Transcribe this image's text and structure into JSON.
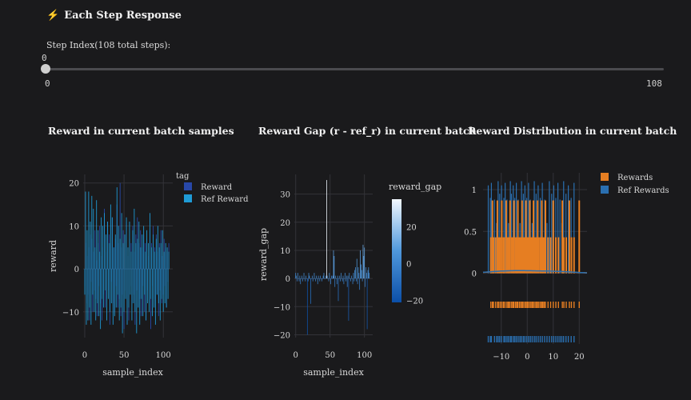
{
  "header": {
    "title": "Each Step Response",
    "icon": "lightning-icon"
  },
  "slider": {
    "label": "Step Index(108 total steps):",
    "value": "0",
    "min": "0",
    "max": "108",
    "current": 0,
    "total": 108
  },
  "charts": [
    {
      "title": "Reward in current batch samples",
      "chart_data": {
        "type": "bar",
        "title": "Reward in current batch samples",
        "xlabel": "sample_index",
        "ylabel": "reward",
        "xlim": [
          -2,
          112
        ],
        "ylim": [
          -16,
          22
        ],
        "x_ticks": [
          "0",
          "50",
          "100"
        ],
        "y_ticks": [
          "−10",
          "0",
          "10",
          "20"
        ],
        "legend": {
          "title": "tag",
          "entries": [
            "Reward",
            "Ref Reward"
          ],
          "colors": [
            "#2848a8",
            "#1f9bd6"
          ]
        },
        "series": [
          {
            "name": "Reward",
            "values": [
              -4,
              6,
              -8,
              3,
              -6,
              5,
              -12,
              8,
              -3,
              7,
              -10,
              4,
              -5,
              9,
              -7,
              2,
              -11,
              6,
              -4,
              10,
              -8,
              3,
              -12,
              5,
              -6,
              14,
              -9,
              4,
              -7,
              11,
              -5,
              8,
              -13,
              6,
              -3,
              12,
              -8,
              5,
              -10,
              7,
              -4,
              15,
              -9,
              6,
              -7,
              20,
              -11,
              5,
              -6,
              9,
              -14,
              8,
              -5,
              11,
              -9,
              3,
              -12,
              7,
              -4,
              6,
              -8,
              10,
              -6,
              4,
              -13,
              8,
              -5,
              12,
              -9,
              6,
              -7,
              9,
              -11,
              5,
              -4,
              8,
              -10,
              6,
              -12,
              7,
              -5,
              3,
              -8,
              9,
              -14,
              6,
              -4,
              10,
              -7,
              5,
              -9,
              8,
              -6,
              4,
              -11,
              6,
              -5,
              9,
              -8,
              3,
              -6,
              7,
              -4,
              5,
              -9,
              4,
              -3,
              6
            ]
          },
          {
            "name": "Ref Reward",
            "values": [
              -6,
              18,
              -13,
              9,
              -12,
              18,
              -9,
              11,
              -13,
              17,
              -6,
              14,
              -10,
              5,
              -12,
              16,
              -8,
              9,
              -11,
              4,
              -14,
              12,
              -7,
              10,
              -9,
              13,
              -5,
              8,
              -12,
              11,
              -7,
              6,
              -10,
              15,
              -8,
              12,
              -13,
              5,
              -11,
              8,
              -9,
              19,
              -6,
              10,
              -12,
              7,
              -9,
              13,
              -15,
              6,
              -10,
              8,
              -7,
              12,
              -13,
              5,
              -9,
              11,
              -6,
              4,
              -12,
              9,
              -8,
              14,
              -10,
              6,
              -15,
              7,
              -9,
              11,
              -13,
              5,
              -7,
              8,
              -11,
              10,
              -6,
              4,
              -12,
              9,
              -8,
              6,
              -10,
              13,
              -7,
              5,
              -11,
              8,
              -9,
              4,
              -13,
              7,
              -6,
              10,
              -8,
              5,
              -12,
              6,
              -7,
              9,
              -10,
              4,
              -8,
              6,
              -9,
              5,
              -7,
              4
            ]
          }
        ]
      }
    },
    {
      "title": "Reward Gap (r - ref_r) in current batch",
      "chart_data": {
        "type": "bar",
        "title": "Reward Gap (r - ref_r) in current batch",
        "xlabel": "sample_index",
        "ylabel": "reward_gap",
        "xlim": [
          -2,
          112
        ],
        "ylim": [
          -21,
          37
        ],
        "x_ticks": [
          "0",
          "50",
          "100"
        ],
        "y_ticks": [
          "−20",
          "−10",
          "0",
          "10",
          "20",
          "30"
        ],
        "colorbar": {
          "title": "reward_gap",
          "ticks": [
            "20",
            "0",
            "−20"
          ],
          "range": [
            -21,
            35
          ]
        },
        "values": [
          2,
          1,
          -1,
          2,
          0,
          -1,
          1,
          -2,
          0,
          1,
          -1,
          0,
          2,
          0,
          -1,
          1,
          0,
          -20,
          -1,
          2,
          1,
          0,
          -9,
          0,
          1,
          -1,
          0,
          2,
          0,
          -1,
          1,
          0,
          -2,
          1,
          0,
          -1,
          1,
          0,
          -1,
          0,
          1,
          2,
          0,
          0,
          1,
          35,
          1,
          0,
          -1,
          2,
          0,
          -2,
          1,
          0,
          1,
          10,
          8,
          -3,
          1,
          0,
          -2,
          1,
          -8,
          0,
          1,
          -1,
          2,
          0,
          -1,
          1,
          -2,
          0,
          2,
          -1,
          1,
          -3,
          1,
          -15,
          2,
          0,
          -1,
          1,
          0,
          -2,
          2,
          -1,
          3,
          4,
          -1,
          7,
          -2,
          4,
          2,
          -4,
          10,
          5,
          3,
          -1,
          12,
          8,
          11,
          -3,
          4,
          2,
          -18,
          3,
          4,
          2
        ]
      }
    },
    {
      "title": "Reward Distribution in current batch",
      "chart_data": {
        "type": "histogram",
        "title": "Reward Distribution in current batch",
        "xlim": [
          -17,
          23
        ],
        "ylim": [
          -0.08,
          1.2
        ],
        "x_ticks": [
          "−10",
          "0",
          "10",
          "20"
        ],
        "y_ticks": [
          "0",
          "0.5",
          "1"
        ],
        "legend": {
          "entries": [
            "Rewards",
            "Ref Rewards"
          ],
          "colors": [
            "#e67e22",
            "#2a6fb0"
          ]
        },
        "series": [
          {
            "name": "Rewards",
            "values": [
              -14,
              -13.4,
              -13,
              -12.2,
              -11.5,
              -11,
              -10.4,
              -9.8,
              -9.2,
              -8.8,
              -8.1,
              -7.5,
              -7.1,
              -6.6,
              -6,
              -5.5,
              -5.1,
              -4.5,
              -4,
              -3.6,
              -3,
              -2.5,
              -2,
              -1.6,
              -1,
              -0.5,
              0,
              0.4,
              1,
              1.5,
              2,
              2.4,
              3,
              3.5,
              4,
              4.5,
              5.1,
              5.6,
              6,
              6.5,
              7,
              8,
              9,
              10,
              11,
              12,
              13.5,
              14.1,
              15,
              16.2,
              17,
              18,
              20
            ]
          },
          {
            "name": "Ref Rewards",
            "values": [
              -15,
              -14.2,
              -13.8,
              -12.6,
              -11.8,
              -11.2,
              -10.6,
              -9.9,
              -9,
              -8.5,
              -7.8,
              -7.2,
              -6.5,
              -6.1,
              -5.4,
              -4.8,
              -4.2,
              -3.5,
              -2.8,
              -2.2,
              -1.5,
              -0.9,
              -0.2,
              0.5,
              1.2,
              1.9,
              2.7,
              3.4,
              4.2,
              5,
              5.8,
              6.7,
              7.6,
              8.5,
              9.4,
              10.2,
              11,
              11.8,
              12.6,
              13.3,
              14,
              14.9,
              15.8,
              16.9,
              18
            ]
          }
        ]
      }
    }
  ]
}
